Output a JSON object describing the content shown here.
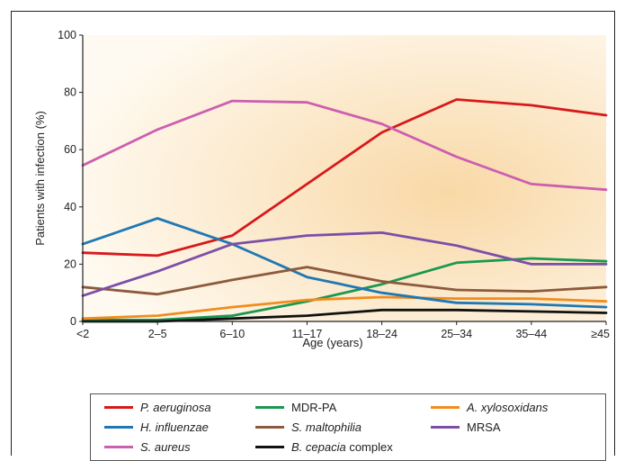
{
  "chart_data": {
    "type": "line",
    "title": "",
    "xlabel": "Age (years)",
    "ylabel": "Patients with infection (%)",
    "ylim": [
      0,
      100
    ],
    "yticks": [
      "0",
      "20",
      "40",
      "60",
      "80",
      "100"
    ],
    "categories": [
      "<2",
      "2–5",
      "6–10",
      "11–17",
      "18–24",
      "25–34",
      "35–44",
      "≥45"
    ],
    "grid": false,
    "legend_position": "bottom",
    "series": [
      {
        "name": "P. aeruginosa",
        "italic": "P. aeruginosa",
        "suffix": "",
        "color": "#d7191c",
        "values": [
          24,
          23,
          30,
          48,
          66,
          77.5,
          75.5,
          72
        ]
      },
      {
        "name": "MDR-PA",
        "italic": "",
        "suffix": "MDR-PA",
        "color": "#1a9850",
        "values": [
          0.5,
          0.5,
          2,
          7,
          13,
          20.5,
          22,
          21
        ]
      },
      {
        "name": "A. xylosoxidans",
        "italic": "A. xylosoxidans",
        "suffix": "",
        "color": "#f28c1e",
        "values": [
          1,
          2,
          5,
          7.5,
          8.5,
          8,
          8,
          7
        ]
      },
      {
        "name": "H. influenzae",
        "italic": "H. influenzae",
        "suffix": "",
        "color": "#1f78b4",
        "values": [
          27,
          36,
          27,
          15.5,
          10,
          6.5,
          6,
          5
        ]
      },
      {
        "name": "S. maltophilia",
        "italic": "S. maltophilia",
        "suffix": "",
        "color": "#8c5a3c",
        "values": [
          12,
          9.5,
          14.5,
          19,
          14,
          11,
          10.5,
          12
        ]
      },
      {
        "name": "MRSA",
        "italic": "",
        "suffix": "MRSA",
        "color": "#7b4fa8",
        "values": [
          9,
          17.5,
          27,
          30,
          31,
          26.5,
          20,
          20
        ]
      },
      {
        "name": "S. aureus",
        "italic": "S. aureus",
        "suffix": "",
        "color": "#cc5fb0",
        "values": [
          54.5,
          67,
          77,
          76.5,
          69,
          57.5,
          48,
          46
        ]
      },
      {
        "name": "B. cepacia complex",
        "italic": "B. cepacia",
        "suffix": " complex",
        "color": "#111111",
        "values": [
          0,
          0,
          1,
          2,
          4,
          4,
          3.5,
          3
        ]
      }
    ]
  }
}
